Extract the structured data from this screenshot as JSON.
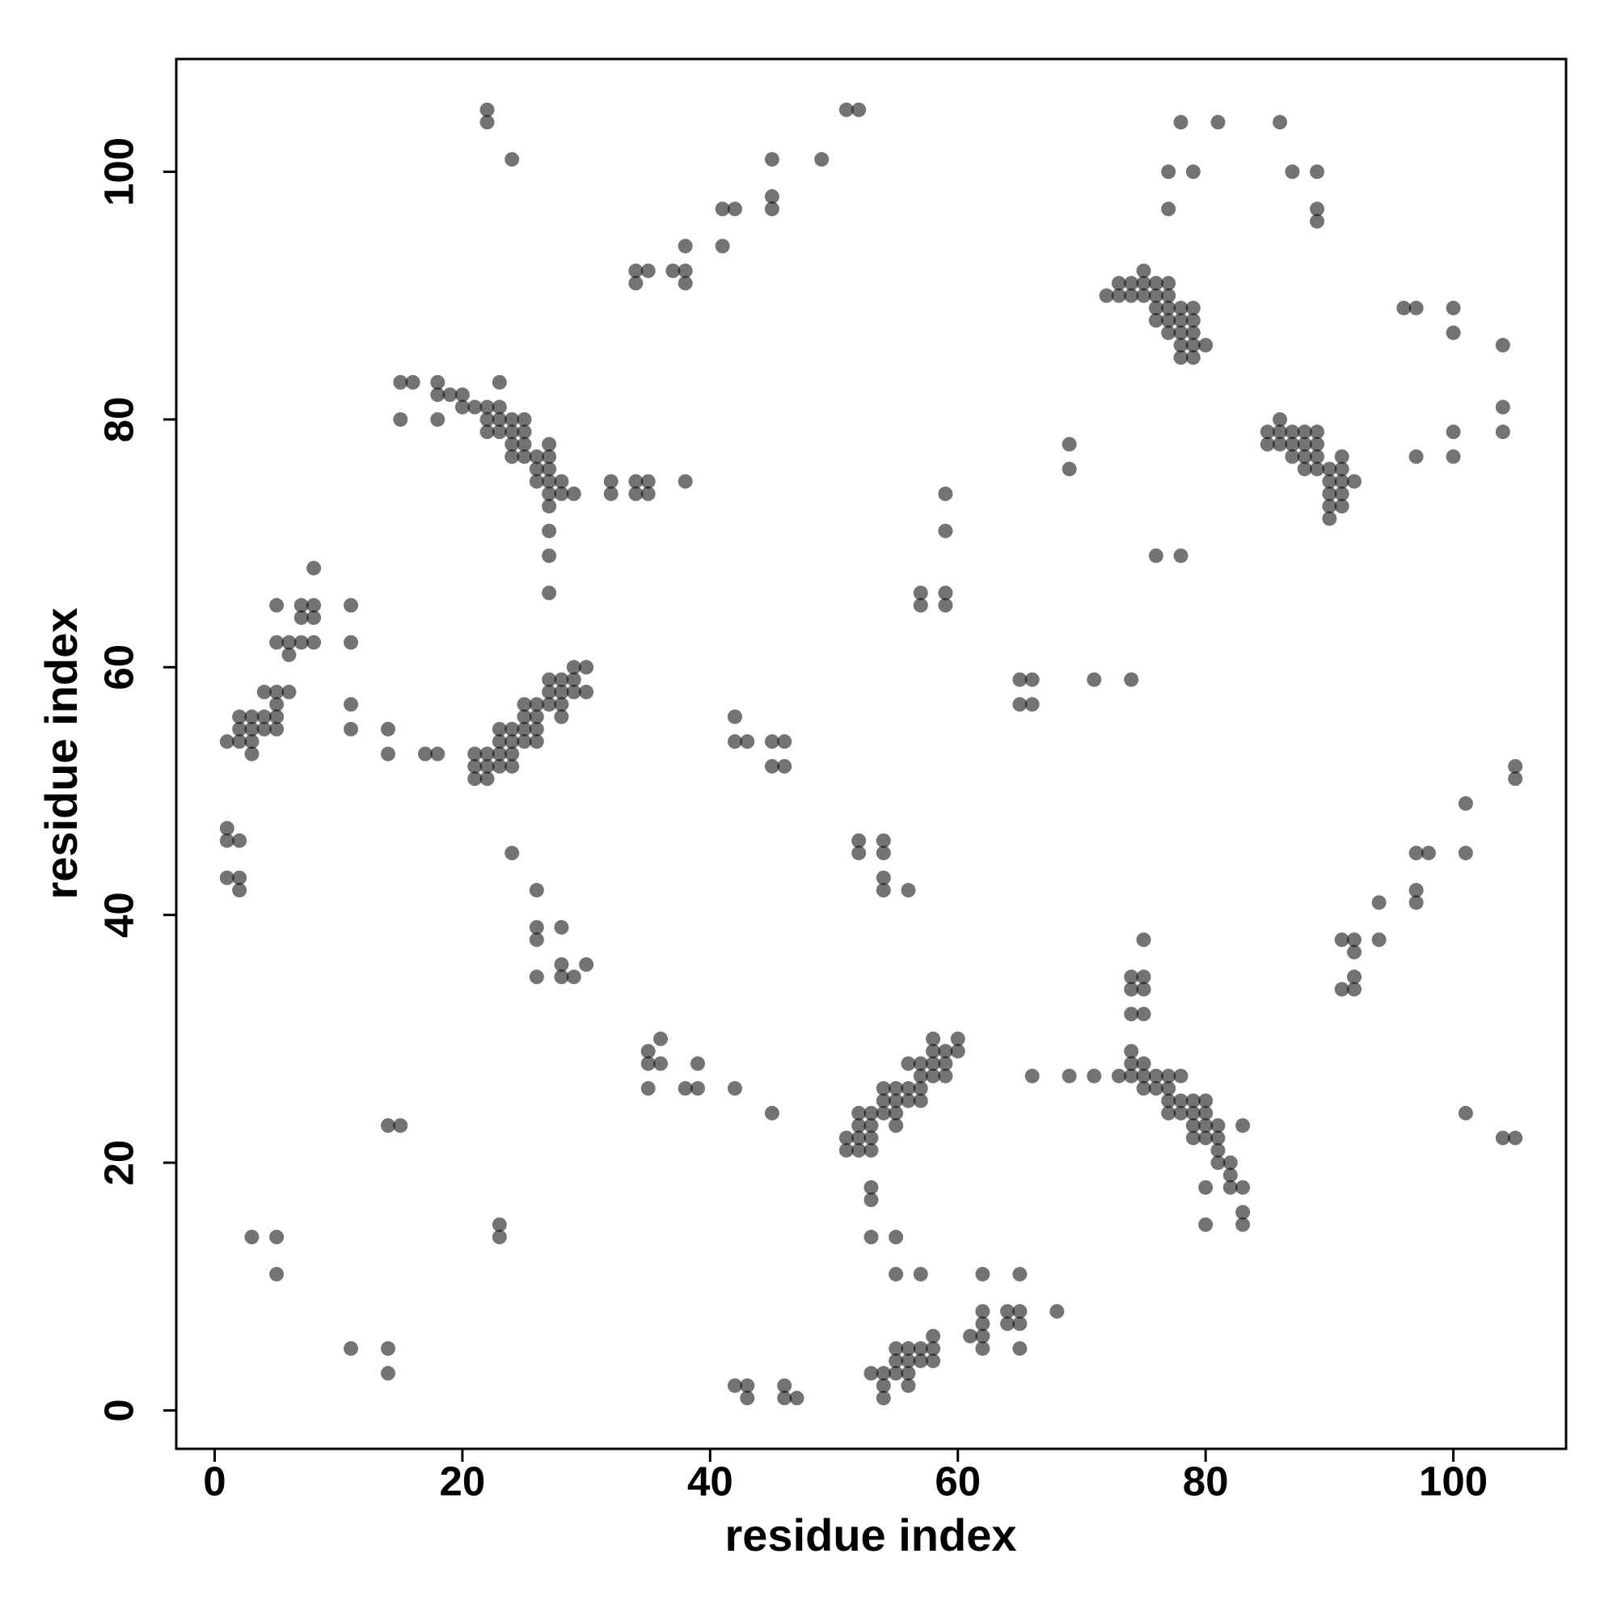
{
  "chart_data": {
    "type": "scatter",
    "xlabel": "residue index",
    "ylabel": "residue index",
    "xlim": [
      -3.1,
      109.1
    ],
    "ylim": [
      -3.1,
      109.1
    ],
    "xticks": [
      0,
      20,
      40,
      60,
      80,
      100
    ],
    "yticks": [
      0,
      20,
      40,
      60,
      80,
      100
    ],
    "color": "#000000",
    "alpha": 0.55,
    "x": [
      22,
      22,
      24,
      51,
      52,
      45,
      49,
      45,
      45,
      41,
      42,
      41,
      38,
      34,
      35,
      37,
      38,
      34,
      38,
      78,
      81,
      86,
      77,
      79,
      87,
      89,
      77,
      89,
      89,
      72,
      73,
      73,
      74,
      74,
      75,
      75,
      75,
      76,
      76,
      76,
      76,
      77,
      77,
      77,
      77,
      77,
      78,
      78,
      78,
      78,
      78,
      79,
      79,
      79,
      79,
      79,
      80,
      96,
      97,
      100,
      100,
      104,
      104,
      104,
      100,
      100,
      97,
      85,
      85,
      86,
      86,
      86,
      87,
      87,
      87,
      88,
      88,
      88,
      88,
      89,
      89,
      89,
      89,
      90,
      90,
      90,
      90,
      90,
      91,
      91,
      91,
      91,
      91,
      92,
      76,
      78,
      69,
      69,
      59,
      59,
      57,
      57,
      59,
      59,
      65,
      66,
      65,
      66,
      71,
      74,
      15,
      16,
      15,
      18,
      18,
      18,
      19,
      20,
      20,
      21,
      22,
      22,
      22,
      23,
      23,
      23,
      23,
      24,
      24,
      24,
      24,
      25,
      25,
      25,
      25,
      26,
      26,
      26,
      27,
      27,
      27,
      27,
      27,
      27,
      27,
      27,
      27,
      28,
      28,
      29,
      32,
      32,
      34,
      34,
      35,
      35,
      38,
      1,
      2,
      2,
      2,
      3,
      3,
      3,
      3,
      4,
      4,
      4,
      5,
      5,
      5,
      5,
      5,
      5,
      6,
      6,
      6,
      7,
      7,
      7,
      8,
      8,
      8,
      8,
      11,
      11,
      11,
      11,
      14,
      14,
      17,
      18,
      21,
      21,
      21,
      22,
      22,
      22,
      23,
      23,
      23,
      23,
      24,
      24,
      24,
      24,
      25,
      25,
      25,
      25,
      26,
      26,
      26,
      26,
      27,
      27,
      27,
      28,
      28,
      28,
      28,
      29,
      29,
      29,
      30,
      30,
      42,
      42,
      43,
      45,
      46,
      45,
      46,
      1,
      1,
      2,
      1,
      2,
      2,
      24,
      26,
      26,
      26,
      26,
      28,
      28,
      28,
      29,
      30,
      52,
      54,
      52,
      54,
      54,
      54,
      56,
      105,
      105,
      101,
      97,
      98,
      101,
      97,
      97,
      94,
      94,
      91,
      92,
      92,
      92,
      91,
      92,
      75,
      74,
      75,
      74,
      75,
      74,
      75,
      74,
      74,
      74,
      73,
      75,
      75,
      75,
      76,
      76,
      77,
      77,
      77,
      77,
      78,
      78,
      78,
      79,
      79,
      79,
      79,
      80,
      80,
      80,
      80,
      81,
      81,
      81,
      81,
      82,
      82,
      82,
      83,
      83,
      83,
      83,
      80,
      80,
      66,
      69,
      71,
      51,
      51,
      52,
      52,
      52,
      52,
      53,
      53,
      53,
      53,
      54,
      54,
      54,
      55,
      55,
      55,
      55,
      56,
      56,
      56,
      57,
      57,
      57,
      57,
      58,
      58,
      58,
      58,
      59,
      59,
      59,
      60,
      60,
      53,
      53,
      53,
      55,
      55,
      57,
      62,
      65,
      68,
      64,
      65,
      62,
      62,
      64,
      65,
      61,
      62,
      62,
      65,
      53,
      54,
      54,
      54,
      55,
      55,
      55,
      56,
      56,
      56,
      56,
      57,
      57,
      58,
      58,
      58,
      42,
      43,
      43,
      46,
      46,
      47,
      35,
      35,
      36,
      36,
      39,
      35,
      38,
      39,
      42,
      45,
      14,
      15,
      23,
      23,
      3,
      5,
      5,
      11,
      14,
      14,
      101,
      104,
      105
    ],
    "values": [
      105,
      104,
      101,
      105,
      105,
      101,
      101,
      98,
      97,
      97,
      97,
      94,
      94,
      92,
      92,
      92,
      92,
      91,
      91,
      104,
      104,
      104,
      100,
      100,
      100,
      100,
      97,
      97,
      96,
      90,
      90,
      91,
      91,
      90,
      92,
      91,
      90,
      91,
      90,
      89,
      88,
      91,
      90,
      89,
      88,
      87,
      89,
      88,
      87,
      86,
      85,
      89,
      88,
      87,
      86,
      85,
      86,
      89,
      89,
      89,
      87,
      86,
      81,
      79,
      79,
      77,
      77,
      79,
      78,
      80,
      79,
      78,
      79,
      78,
      77,
      79,
      78,
      77,
      76,
      79,
      78,
      77,
      76,
      76,
      75,
      74,
      73,
      72,
      77,
      76,
      75,
      74,
      73,
      75,
      69,
      69,
      78,
      76,
      74,
      71,
      66,
      65,
      66,
      65,
      59,
      59,
      57,
      57,
      59,
      59,
      83,
      83,
      80,
      83,
      82,
      80,
      82,
      82,
      81,
      81,
      81,
      80,
      79,
      83,
      81,
      80,
      79,
      80,
      79,
      78,
      77,
      80,
      79,
      78,
      77,
      77,
      76,
      75,
      78,
      77,
      76,
      75,
      74,
      73,
      71,
      69,
      66,
      75,
      74,
      74,
      75,
      74,
      75,
      74,
      75,
      74,
      75,
      54,
      56,
      55,
      54,
      56,
      55,
      54,
      53,
      58,
      56,
      55,
      58,
      57,
      56,
      55,
      65,
      62,
      62,
      61,
      58,
      65,
      64,
      62,
      68,
      65,
      64,
      62,
      65,
      62,
      57,
      55,
      55,
      53,
      53,
      53,
      53,
      52,
      51,
      53,
      52,
      51,
      55,
      54,
      53,
      52,
      55,
      54,
      53,
      52,
      57,
      56,
      55,
      54,
      57,
      56,
      55,
      54,
      59,
      58,
      57,
      59,
      58,
      57,
      56,
      60,
      59,
      58,
      60,
      58,
      56,
      54,
      54,
      54,
      54,
      52,
      52,
      47,
      46,
      46,
      43,
      43,
      42,
      45,
      42,
      39,
      38,
      35,
      39,
      36,
      35,
      35,
      36,
      46,
      46,
      45,
      45,
      43,
      42,
      42,
      52,
      51,
      49,
      45,
      45,
      45,
      42,
      41,
      41,
      38,
      38,
      38,
      37,
      35,
      34,
      34,
      38,
      35,
      35,
      34,
      34,
      32,
      32,
      29,
      28,
      27,
      27,
      28,
      27,
      26,
      27,
      26,
      27,
      26,
      25,
      24,
      27,
      25,
      24,
      25,
      24,
      23,
      22,
      25,
      24,
      23,
      22,
      23,
      22,
      21,
      20,
      20,
      19,
      18,
      23,
      18,
      16,
      15,
      18,
      15,
      27,
      27,
      27,
      22,
      21,
      24,
      23,
      22,
      21,
      24,
      23,
      22,
      21,
      26,
      25,
      24,
      26,
      25,
      24,
      23,
      28,
      26,
      25,
      28,
      27,
      26,
      25,
      30,
      29,
      28,
      27,
      29,
      28,
      27,
      30,
      29,
      18,
      17,
      14,
      14,
      11,
      11,
      11,
      11,
      8,
      8,
      8,
      8,
      7,
      7,
      7,
      6,
      6,
      5,
      5,
      3,
      3,
      2,
      1,
      5,
      4,
      3,
      5,
      4,
      3,
      2,
      5,
      4,
      6,
      5,
      4,
      2,
      2,
      1,
      2,
      1,
      1,
      29,
      28,
      30,
      28,
      28,
      26,
      26,
      26,
      26,
      24,
      23,
      23,
      15,
      14,
      14,
      14,
      11,
      5,
      5,
      3,
      24,
      22,
      22
    ]
  }
}
